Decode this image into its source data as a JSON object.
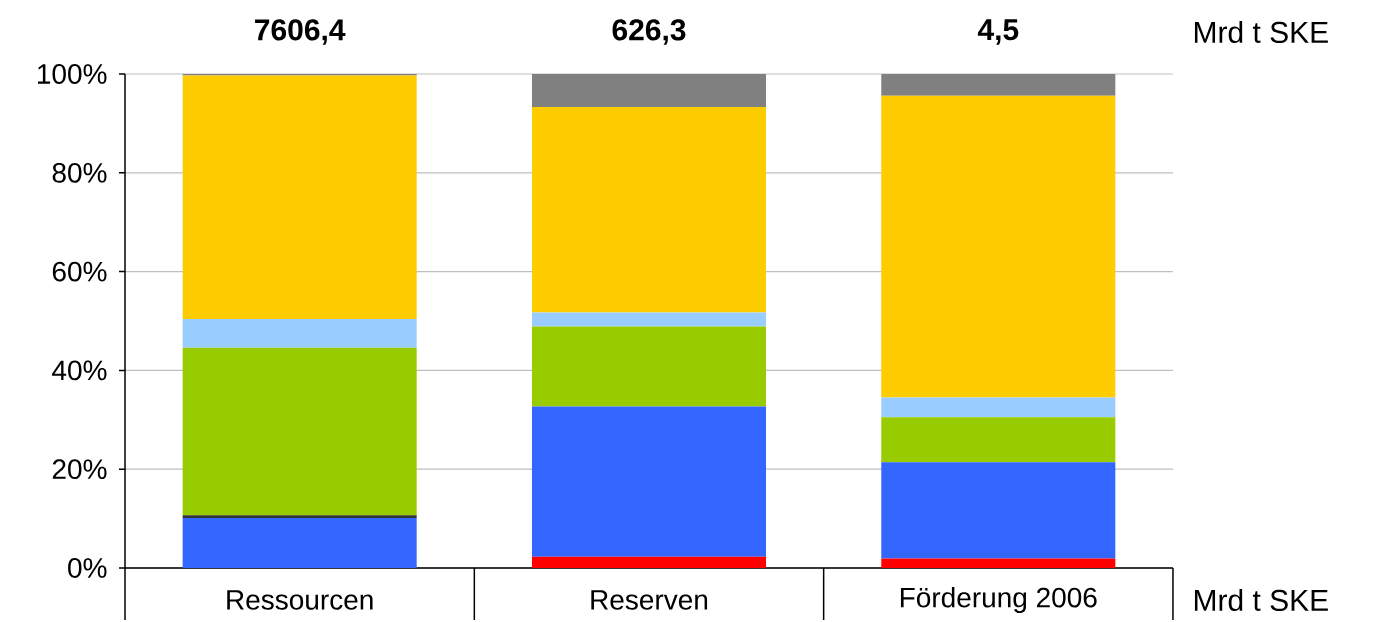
{
  "chart_data": {
    "type": "bar",
    "stacked": true,
    "categories": [
      "Ressourcen",
      "Reserven",
      "Förderung 2006"
    ],
    "series": [
      {
        "color": "#ff0000",
        "values": [
          0,
          2.3,
          1.9
        ]
      },
      {
        "color": "#3366ff",
        "values": [
          10.1,
          30.4,
          19.5
        ]
      },
      {
        "color": "#333333",
        "values": [
          0.6,
          0,
          0
        ]
      },
      {
        "color": "#99cc00",
        "values": [
          33.9,
          16.2,
          9.1
        ]
      },
      {
        "color": "#99ccff",
        "values": [
          5.8,
          2.8,
          4.0
        ]
      },
      {
        "color": "#ffcc00",
        "values": [
          49.3,
          41.6,
          61.1
        ]
      },
      {
        "color": "#808080",
        "values": [
          0.3,
          6.7,
          4.4
        ]
      }
    ],
    "ylim": [
      0,
      100
    ],
    "yticks": [
      {
        "value": 0,
        "label": "0%"
      },
      {
        "value": 20,
        "label": "20%"
      },
      {
        "value": 40,
        "label": "40%"
      },
      {
        "value": 60,
        "label": "60%"
      },
      {
        "value": 80,
        "label": "80%"
      },
      {
        "value": 100,
        "label": "100%"
      }
    ],
    "grid": "y",
    "annotations": [
      "7606,4",
      "626,3",
      "4,5",
      "Mrd t SKE",
      "Mrd t SKE"
    ]
  }
}
